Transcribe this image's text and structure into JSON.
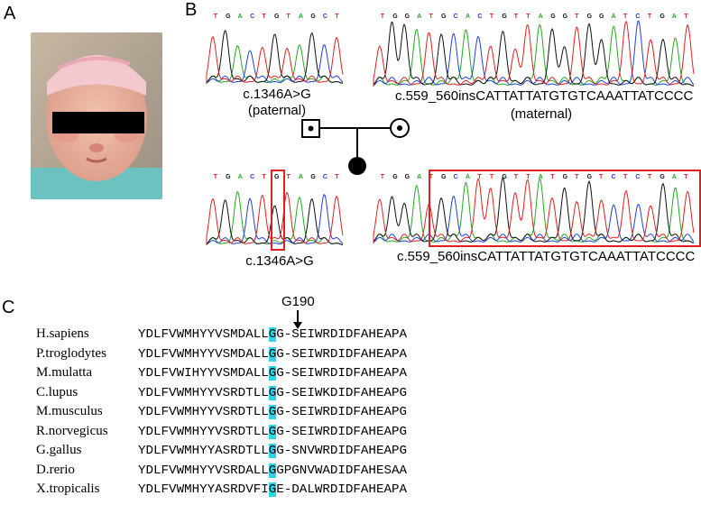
{
  "panels": {
    "a": "A",
    "b": "B",
    "c": "C"
  },
  "chromatograms": {
    "paternal": {
      "bases": [
        "T",
        "G",
        "A",
        "C",
        "T",
        "G",
        "T",
        "A",
        "G",
        "C",
        "T"
      ],
      "label": "c.1346A>G",
      "sublabel": "(paternal)"
    },
    "maternal": {
      "bases": [
        "T",
        "G",
        "G",
        "A",
        "T",
        "G",
        "C",
        "A",
        "C",
        "T",
        "G",
        "T",
        "T",
        "A",
        "G",
        "G",
        "T",
        "G",
        "G",
        "A",
        "T",
        "C",
        "T",
        "G",
        "A",
        "T"
      ],
      "label": "c.559_560insCATTATTATGTGTCAAATTATCCCC",
      "sublabel": "(maternal)"
    },
    "proband_left": {
      "bases": [
        "T",
        "G",
        "A",
        "C",
        "T",
        "G",
        "T",
        "A",
        "G",
        "C",
        "T"
      ],
      "label": "c.1346A>G"
    },
    "proband_right": {
      "bases": [
        "T",
        "G",
        "G",
        "A",
        "T",
        "G",
        "C",
        "A",
        "T",
        "T",
        "G",
        "T",
        "T",
        "A",
        "T",
        "G",
        "T",
        "G",
        "T",
        "C",
        "T",
        "C",
        "T",
        "G",
        "A",
        "T"
      ],
      "label": "c.559_560insCATTATTATGTGTCAAATTATCCCC"
    }
  },
  "conservation": {
    "marker": "G190",
    "rows": [
      {
        "species": "H.sapiens",
        "pre": "YDLFVWMHYYVSMDALL",
        "hl": "G",
        "post": "G-SEIWRDIDFAHEAPA"
      },
      {
        "species": "P.troglodytes",
        "pre": "YDLFVWMHYYVSMDALL",
        "hl": "G",
        "post": "G-SEIWRDIDFAHEAPA"
      },
      {
        "species": "M.mulatta",
        "pre": "YDLFVWIHYYVSMDALL",
        "hl": "G",
        "post": "G-SEIWRDIDFAHEAPA"
      },
      {
        "species": "C.lupus",
        "pre": "YDLFVWMHYYVSRDTLL",
        "hl": "G",
        "post": "G-SEIWKDIDFAHEAPG"
      },
      {
        "species": "M.musculus",
        "pre": "YDLFVWMHYYVSRDTLL",
        "hl": "G",
        "post": "G-SEIWRDIDFAHEAPG"
      },
      {
        "species": "R.norvegicus",
        "pre": "YDLFVWMHYYVSRDTLL",
        "hl": "G",
        "post": "G-SEIWRDIDFAHEAPG"
      },
      {
        "species": "G.gallus",
        "pre": "YDLFVWMHYYASRDTLL",
        "hl": "G",
        "post": "G-SNVWRDIDFAHEAPG"
      },
      {
        "species": "D.rerio",
        "pre": "YDLFVWMHYYVSRDALL",
        "hl": "G",
        "post": "GPGNVWADIDFAHESAA"
      },
      {
        "species": "X.tropicalis",
        "pre": "YDLFVWMHYYASRDVFI",
        "hl": "G",
        "post": "E-DALWRDIDFAHEAPA"
      }
    ]
  },
  "colors": {
    "A": "#22aa22",
    "C": "#2040e0",
    "G": "#111111",
    "T": "#e02020",
    "highlight": "#29d6ea",
    "box": "#e02020"
  }
}
